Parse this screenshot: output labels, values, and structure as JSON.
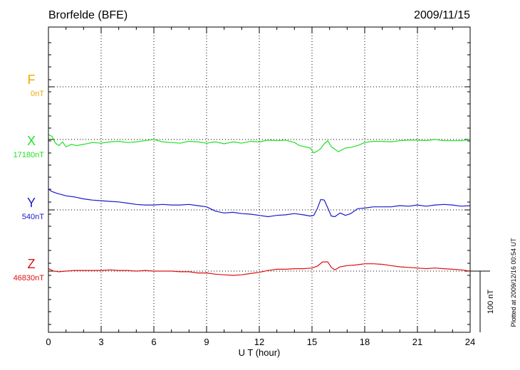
{
  "header": {
    "station": "Brorfelde (BFE)",
    "date": "2009/11/15"
  },
  "side_note": "Plotted at 2009/12/16 00:54 UT",
  "scale_bar_label": "100 nT",
  "chart_data": {
    "type": "line",
    "title": "Brorfelde (BFE)",
    "xlabel": "U T (hour)",
    "ylabel": "",
    "xlim": [
      0,
      24
    ],
    "xticks": [
      0,
      3,
      6,
      9,
      12,
      15,
      18,
      21,
      24
    ],
    "grid": true,
    "scale_bar_nT": 100,
    "series": [
      {
        "name": "F",
        "baseline_label": "0nT",
        "color": "#f0a800",
        "x": [],
        "y": []
      },
      {
        "name": "X",
        "baseline_label": "17180nT",
        "color": "#22e022",
        "x": [
          0,
          0.2,
          0.4,
          0.6,
          0.8,
          1.0,
          1.3,
          1.6,
          2,
          2.5,
          3,
          3.5,
          4,
          4.5,
          5,
          5.5,
          6,
          6.5,
          7,
          7.5,
          8,
          8.5,
          9,
          9.5,
          10,
          10.5,
          11,
          11.5,
          12,
          12.5,
          13,
          13.5,
          14,
          14.3,
          14.6,
          14.9,
          15.1,
          15.3,
          15.5,
          15.7,
          15.9,
          16.1,
          16.3,
          16.5,
          16.7,
          16.9,
          17.2,
          17.6,
          18,
          18.5,
          19,
          19.5,
          20,
          20.5,
          21,
          21.5,
          22,
          22.5,
          23,
          23.5,
          24
        ],
        "y": [
          8,
          5,
          -6,
          -10,
          -4,
          -12,
          -8,
          -10,
          -8,
          -5,
          -6,
          -4,
          -3,
          -5,
          -4,
          -2,
          0,
          -4,
          -5,
          -6,
          -3,
          -4,
          -6,
          -4,
          -7,
          -4,
          -6,
          -3,
          -4,
          -1,
          -2,
          -1,
          -5,
          -10,
          -12,
          -14,
          -22,
          -19,
          -15,
          -7,
          -2,
          -12,
          -16,
          -20,
          -17,
          -14,
          -13,
          -10,
          -5,
          -3,
          -3,
          -4,
          -2,
          -1,
          -1,
          -2,
          0,
          -2,
          -2,
          -2,
          0
        ]
      },
      {
        "name": "Y",
        "baseline_label": "540nT",
        "color": "#1a1acc",
        "x": [
          0,
          0.2,
          0.5,
          1,
          1.5,
          2,
          2.5,
          3,
          3.5,
          4,
          4.5,
          5,
          5.5,
          6,
          6.5,
          7,
          7.5,
          8,
          8.5,
          9,
          9.5,
          10,
          10.5,
          11,
          11.5,
          12,
          12.5,
          13,
          13.5,
          14,
          14.5,
          14.9,
          15.1,
          15.3,
          15.5,
          15.7,
          15.9,
          16.1,
          16.3,
          16.6,
          16.9,
          17.2,
          17.6,
          18,
          18.5,
          19,
          19.5,
          20,
          20.5,
          21,
          21.5,
          22,
          22.5,
          23,
          23.5,
          24
        ],
        "y": [
          34,
          30,
          27,
          23,
          21,
          18,
          16,
          15,
          14,
          13,
          11,
          9,
          8,
          8,
          9,
          8,
          8,
          9,
          7,
          5,
          -2,
          -5,
          -4,
          -6,
          -7,
          -9,
          -11,
          -9,
          -8,
          -6,
          -8,
          -10,
          -9,
          2,
          17,
          16,
          3,
          -10,
          -11,
          -5,
          -9,
          -6,
          2,
          3,
          5,
          5,
          5,
          7,
          6,
          8,
          6,
          8,
          9,
          8,
          6,
          7
        ]
      },
      {
        "name": "Z",
        "baseline_label": "46830nT",
        "color": "#dd1111",
        "x": [
          0,
          0.3,
          0.6,
          1,
          1.5,
          2,
          2.5,
          3,
          3.5,
          4,
          4.5,
          5,
          5.5,
          6,
          6.5,
          7,
          7.5,
          8,
          8.5,
          9,
          9.5,
          10,
          10.5,
          11,
          11.5,
          12,
          12.5,
          13,
          13.5,
          14,
          14.5,
          15,
          15.3,
          15.6,
          15.9,
          16.1,
          16.3,
          16.6,
          17,
          17.5,
          18,
          18.5,
          19,
          19.5,
          20,
          20.5,
          21,
          21.5,
          22,
          22.5,
          23,
          23.5,
          24
        ],
        "y": [
          4,
          0,
          -1,
          0,
          1,
          1,
          1,
          1,
          2,
          1,
          1,
          0,
          1,
          0,
          0,
          0,
          -1,
          -1,
          -3,
          -3,
          -5,
          -6,
          -7,
          -6,
          -4,
          -2,
          1,
          3,
          3,
          4,
          4,
          5,
          8,
          15,
          15,
          6,
          2,
          7,
          9,
          10,
          12,
          12,
          11,
          9,
          7,
          6,
          5,
          4,
          5,
          4,
          3,
          2,
          0
        ]
      }
    ]
  }
}
